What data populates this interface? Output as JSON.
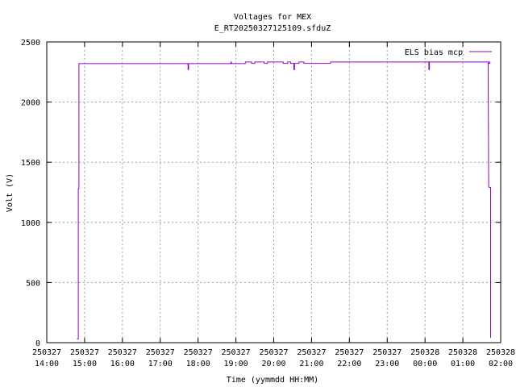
{
  "chart_data": {
    "type": "line",
    "title": "Voltages for MEX",
    "subtitle": "E_RT20250327125109.sfduZ",
    "xlabel": "Time (yymmdd HH:MM)",
    "ylabel": "Volt (V)",
    "xlim": [
      "250327 14:00",
      "250328 02:00"
    ],
    "ylim": [
      0,
      2500
    ],
    "grid": true,
    "legend_position": "top-right",
    "y_ticks": [
      "0",
      "500",
      "1000",
      "1500",
      "2000",
      "2500"
    ],
    "x_ticks": [
      {
        "date": "250327",
        "time": "14:00"
      },
      {
        "date": "250327",
        "time": "15:00"
      },
      {
        "date": "250327",
        "time": "16:00"
      },
      {
        "date": "250327",
        "time": "17:00"
      },
      {
        "date": "250327",
        "time": "18:00"
      },
      {
        "date": "250327",
        "time": "19:00"
      },
      {
        "date": "250327",
        "time": "20:00"
      },
      {
        "date": "250327",
        "time": "21:00"
      },
      {
        "date": "250327",
        "time": "22:00"
      },
      {
        "date": "250327",
        "time": "23:00"
      },
      {
        "date": "250328",
        "time": "00:00"
      },
      {
        "date": "250328",
        "time": "01:00"
      },
      {
        "date": "250328",
        "time": "02:00"
      }
    ],
    "series": [
      {
        "name": "ELS bias mcp",
        "color": "#9400d3",
        "points": [
          [
            "250327 14:48",
            30
          ],
          [
            "250327 14:50",
            30
          ],
          [
            "250327 14:50",
            1280
          ],
          [
            "250327 14:51",
            1280
          ],
          [
            "250327 14:51",
            2320
          ],
          [
            "250327 17:44",
            2320
          ],
          [
            "250327 17:44",
            2270
          ],
          [
            "250327 17:45",
            2270
          ],
          [
            "250327 17:45",
            2320
          ],
          [
            "250327 18:52",
            2320
          ],
          [
            "250327 18:52",
            2332
          ],
          [
            "250327 18:53",
            2332
          ],
          [
            "250327 18:53",
            2320
          ],
          [
            "250327 19:15",
            2320
          ],
          [
            "250327 19:15",
            2333
          ],
          [
            "250327 19:25",
            2333
          ],
          [
            "250327 19:25",
            2322
          ],
          [
            "250327 19:30",
            2322
          ],
          [
            "250327 19:30",
            2333
          ],
          [
            "250327 19:45",
            2333
          ],
          [
            "250327 19:45",
            2322
          ],
          [
            "250327 19:50",
            2322
          ],
          [
            "250327 19:50",
            2333
          ],
          [
            "250327 20:15",
            2333
          ],
          [
            "250327 20:15",
            2322
          ],
          [
            "250327 20:22",
            2322
          ],
          [
            "250327 20:22",
            2333
          ],
          [
            "250327 20:27",
            2333
          ],
          [
            "250327 20:27",
            2322
          ],
          [
            "250327 20:32",
            2322
          ],
          [
            "250327 20:32",
            2270
          ],
          [
            "250327 20:33",
            2270
          ],
          [
            "250327 20:33",
            2322
          ],
          [
            "250327 20:40",
            2322
          ],
          [
            "250327 20:40",
            2333
          ],
          [
            "250327 20:48",
            2333
          ],
          [
            "250327 20:48",
            2322
          ],
          [
            "250327 21:30",
            2322
          ],
          [
            "250327 21:30",
            2333
          ],
          [
            "250328 00:06",
            2333
          ],
          [
            "250328 00:06",
            2270
          ],
          [
            "250328 00:07",
            2270
          ],
          [
            "250328 00:07",
            2333
          ],
          [
            "250328 01:40",
            2333
          ],
          [
            "250328 01:40",
            2322
          ],
          [
            "250328 01:43",
            2322
          ],
          [
            "250328 01:43",
            2333
          ],
          [
            "250328 01:39",
            2333
          ],
          [
            "250328 01:40",
            2333
          ],
          [
            "250328 01:41",
            1300
          ],
          [
            "250328 01:42",
            1290
          ],
          [
            "250328 01:44",
            1290
          ],
          [
            "250328 01:44",
            40
          ]
        ]
      }
    ]
  }
}
